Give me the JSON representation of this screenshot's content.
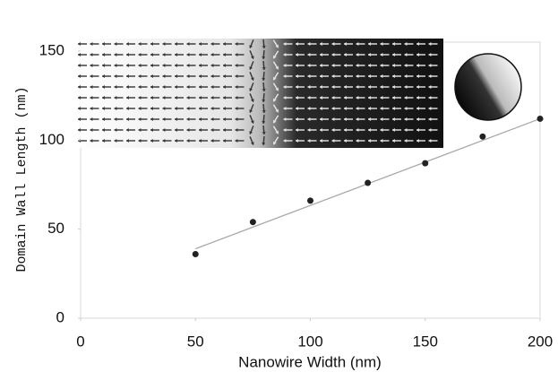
{
  "chart_data": {
    "type": "scatter",
    "x_label": "Nanowire Width (nm)",
    "y_label": "Domain Wall Length (nm)",
    "x": [
      50,
      75,
      100,
      125,
      150,
      175,
      200
    ],
    "values": [
      36,
      54,
      66,
      76,
      87,
      102,
      112
    ],
    "color": "#222222",
    "fit": {
      "x": [
        50,
        200
      ],
      "values": [
        39,
        112
      ],
      "color": "#a8a8a8"
    },
    "xlim": [
      0,
      200
    ],
    "xticks": [
      0,
      50,
      100,
      150,
      200
    ],
    "ylim": [
      0,
      155
    ],
    "yticks": [
      0,
      50,
      100,
      150
    ]
  }
}
